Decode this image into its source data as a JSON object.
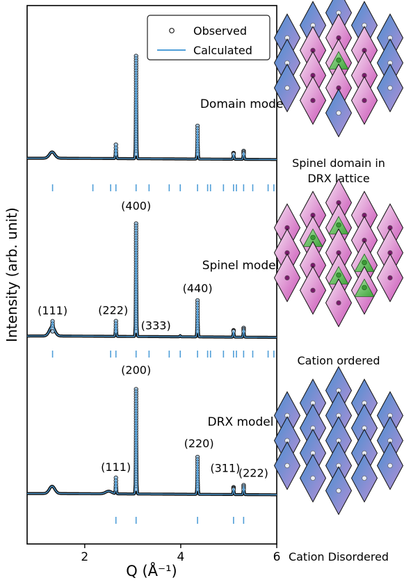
{
  "chart_data": {
    "type": "line",
    "xlabel": "Q (Å⁻¹)",
    "ylabel": "Intensity (arb. unit)",
    "xlim": [
      0.8,
      6.0
    ],
    "x_ticks": [
      2,
      4,
      6
    ],
    "legend": {
      "placement": "top-right",
      "entries": [
        {
          "label": "Observed",
          "marker": "open-circle",
          "color": "#222222"
        },
        {
          "label": "Calculated",
          "marker": "line",
          "color": "#4f9ed8"
        }
      ]
    },
    "colors": {
      "observed": "#111111",
      "observed_fill": "#a9cbe6",
      "calculated": "#4f9ed8",
      "reflection_ticks": "#4f9ed8"
    },
    "panels": [
      {
        "name": "Domain model",
        "baseline": 0.03,
        "broad_humps": [
          {
            "q": 1.32,
            "height": 0.06,
            "width": 0.08
          }
        ],
        "peaks": [
          {
            "q": 2.65,
            "height": 0.13,
            "label": ""
          },
          {
            "q": 3.07,
            "height": 0.98,
            "label": ""
          },
          {
            "q": 4.35,
            "height": 0.31,
            "label": ""
          },
          {
            "q": 5.1,
            "height": 0.05,
            "label": ""
          },
          {
            "q": 5.31,
            "height": 0.07,
            "label": ""
          }
        ],
        "reflection_ticks": [
          1.33,
          2.17,
          2.54,
          2.65,
          3.07,
          3.34,
          3.76,
          3.99,
          4.35,
          4.56,
          4.62,
          4.89,
          5.1,
          5.16,
          5.31,
          5.5,
          5.82,
          5.94
        ]
      },
      {
        "name": "Spinel model",
        "baseline": 0.03,
        "broad_humps": [
          {
            "q": 1.32,
            "height": 0.08,
            "width": 0.08
          }
        ],
        "peaks": [
          {
            "q": 1.33,
            "height": 0.05,
            "label": "(111)"
          },
          {
            "q": 2.65,
            "height": 0.13,
            "label": "(222)"
          },
          {
            "q": 3.07,
            "height": 0.98,
            "label": "(400)"
          },
          {
            "q": 3.99,
            "height": 0.01,
            "label": "(333)"
          },
          {
            "q": 4.35,
            "height": 0.31,
            "label": "(440)"
          },
          {
            "q": 5.1,
            "height": 0.05,
            "label": ""
          },
          {
            "q": 5.31,
            "height": 0.07,
            "label": ""
          }
        ],
        "reflection_ticks": [
          1.33,
          2.54,
          2.65,
          3.07,
          3.34,
          3.76,
          3.99,
          4.35,
          4.56,
          4.62,
          4.89,
          5.1,
          5.16,
          5.31,
          5.5,
          5.82,
          5.94
        ]
      },
      {
        "name": "DRX model",
        "baseline": 0.03,
        "broad_humps": [
          {
            "q": 1.32,
            "height": 0.07,
            "width": 0.08
          },
          {
            "q": 2.5,
            "height": 0.025,
            "width": 0.09
          }
        ],
        "peaks": [
          {
            "q": 2.65,
            "height": 0.15,
            "label": "(111)"
          },
          {
            "q": 3.07,
            "height": 1.0,
            "label": "(200)"
          },
          {
            "q": 4.35,
            "height": 0.35,
            "label": "(220)"
          },
          {
            "q": 5.1,
            "height": 0.06,
            "label": "(311)"
          },
          {
            "q": 5.31,
            "height": 0.08,
            "label": "(222)"
          }
        ],
        "reflection_ticks": [
          2.65,
          3.07,
          4.35,
          5.1,
          5.31
        ]
      }
    ]
  },
  "schematics": [
    {
      "caption": "Spinel domain in DRX lattice",
      "variant": "domain"
    },
    {
      "caption": "Cation ordered",
      "variant": "ordered"
    },
    {
      "caption": "Cation Disordered",
      "variant": "disordered"
    }
  ],
  "schematic_colors": {
    "blue": "#4a8fd0",
    "purple": "#a78fd0",
    "pink": "#e8b5e0",
    "magenta": "#c94fb5",
    "green": "#6ec96a",
    "dot_dark": "#7a1a6b",
    "dot_light": "#e8ecf4"
  }
}
